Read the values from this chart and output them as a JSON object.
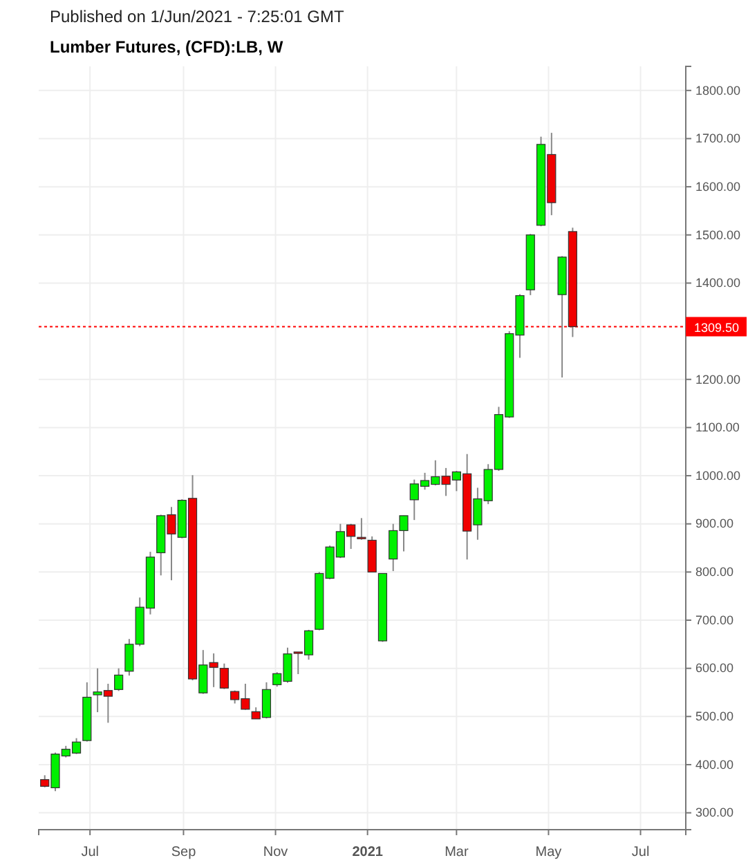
{
  "chart_data": {
    "type": "candlestick",
    "title": "Lumber Futures, (CFD):LB, W",
    "subtitle": "Published on 1/Jun/2021 - 7:25:01 GMT",
    "x": [
      "2020-06-01",
      "2020-06-08",
      "2020-06-15",
      "2020-06-22",
      "2020-06-29",
      "2020-07-06",
      "2020-07-13",
      "2020-07-20",
      "2020-07-27",
      "2020-08-03",
      "2020-08-10",
      "2020-08-17",
      "2020-08-24",
      "2020-08-31",
      "2020-09-07",
      "2020-09-14",
      "2020-09-21",
      "2020-09-28",
      "2020-10-05",
      "2020-10-12",
      "2020-10-19",
      "2020-10-26",
      "2020-11-02",
      "2020-11-09",
      "2020-11-16",
      "2020-11-23",
      "2020-11-30",
      "2020-12-07",
      "2020-12-14",
      "2020-12-21",
      "2020-12-28",
      "2021-01-04",
      "2021-01-11",
      "2021-01-18",
      "2021-01-25",
      "2021-02-01",
      "2021-02-08",
      "2021-02-15",
      "2021-02-22",
      "2021-03-01",
      "2021-03-08",
      "2021-03-15",
      "2021-03-22",
      "2021-03-29",
      "2021-04-05",
      "2021-04-12",
      "2021-04-19",
      "2021-04-26",
      "2021-05-03",
      "2021-05-10",
      "2021-05-17"
    ],
    "ohlc": [
      [
        369,
        378,
        353,
        355
      ],
      [
        352,
        425,
        345,
        422
      ],
      [
        418,
        439,
        415,
        432
      ],
      [
        424,
        455,
        422,
        447
      ],
      [
        450,
        571,
        448,
        540
      ],
      [
        545,
        600,
        509,
        551
      ],
      [
        554,
        568,
        487,
        542
      ],
      [
        556,
        600,
        553,
        586
      ],
      [
        594,
        661,
        585,
        650
      ],
      [
        650,
        747,
        646,
        727
      ],
      [
        725,
        842,
        712,
        831
      ],
      [
        840,
        919,
        793,
        917
      ],
      [
        919,
        935,
        783,
        879
      ],
      [
        872,
        951,
        870,
        949
      ],
      [
        953,
        1001,
        575,
        578
      ],
      [
        549,
        638,
        547,
        607
      ],
      [
        612,
        631,
        561,
        602
      ],
      [
        600,
        610,
        557,
        559
      ],
      [
        552,
        554,
        527,
        535
      ],
      [
        537,
        568,
        514,
        515
      ],
      [
        510,
        519,
        495,
        495
      ],
      [
        498,
        571,
        496,
        556
      ],
      [
        566,
        592,
        562,
        589
      ],
      [
        573,
        643,
        570,
        630
      ],
      [
        634,
        634,
        588,
        631
      ],
      [
        628,
        680,
        618,
        678
      ],
      [
        681,
        800,
        679,
        797
      ],
      [
        787,
        855,
        785,
        852
      ],
      [
        831,
        900,
        829,
        884
      ],
      [
        898,
        900,
        848,
        874
      ],
      [
        872,
        912,
        867,
        870
      ],
      [
        866,
        874,
        800,
        800
      ],
      [
        657,
        797,
        655,
        797
      ],
      [
        827,
        900,
        802,
        886
      ],
      [
        886,
        917,
        843,
        917
      ],
      [
        950,
        992,
        908,
        983
      ],
      [
        978,
        1006,
        971,
        990
      ],
      [
        982,
        1032,
        980,
        998
      ],
      [
        999,
        1016,
        958,
        982
      ],
      [
        991,
        1010,
        968,
        1008
      ],
      [
        1004,
        1045,
        826,
        885
      ],
      [
        898,
        975,
        867,
        952
      ],
      [
        948,
        1024,
        941,
        1013
      ],
      [
        1013,
        1143,
        1010,
        1127
      ],
      [
        1122,
        1300,
        1120,
        1295
      ],
      [
        1292,
        1377,
        1245,
        1374
      ],
      [
        1386,
        1502,
        1375,
        1500
      ],
      [
        1520,
        1704,
        1518,
        1688
      ],
      [
        1667,
        1712,
        1541,
        1567
      ],
      [
        1376,
        1456,
        1204,
        1454
      ],
      [
        1507,
        1515,
        1288,
        1309.5
      ]
    ],
    "xlim": [
      "2020-05-28",
      "2021-07-31"
    ],
    "xticks": [
      {
        "value": "2020-07-01",
        "label": "Jul"
      },
      {
        "value": "2020-09-01",
        "label": "Sep"
      },
      {
        "value": "2020-11-01",
        "label": "Nov"
      },
      {
        "value": "2021-01-01",
        "label": "2021"
      },
      {
        "value": "2021-03-01",
        "label": "Mar"
      },
      {
        "value": "2021-05-01",
        "label": "May"
      },
      {
        "value": "2021-07-01",
        "label": "Jul"
      }
    ],
    "ylim": [
      265,
      1850
    ],
    "yticks": [
      {
        "value": 300,
        "label": "300.00"
      },
      {
        "value": 400,
        "label": "400.00"
      },
      {
        "value": 500,
        "label": "500.00"
      },
      {
        "value": 600,
        "label": "600.00"
      },
      {
        "value": 700,
        "label": "700.00"
      },
      {
        "value": 800,
        "label": "800.00"
      },
      {
        "value": 900,
        "label": "900.00"
      },
      {
        "value": 1000,
        "label": "1000.00"
      },
      {
        "value": 1100,
        "label": "1100.00"
      },
      {
        "value": 1200,
        "label": "1200.00"
      },
      {
        "value": 1400,
        "label": "1400.00"
      },
      {
        "value": 1500,
        "label": "1500.00"
      },
      {
        "value": 1600,
        "label": "1600.00"
      },
      {
        "value": 1700,
        "label": "1700.00"
      },
      {
        "value": 1800,
        "label": "1800.00"
      }
    ],
    "grid": true,
    "ref_lines": [
      {
        "axis": "y",
        "value": 1309.5,
        "label": "1309.50",
        "color": "#ff0000",
        "line_style": "dotted"
      }
    ]
  }
}
